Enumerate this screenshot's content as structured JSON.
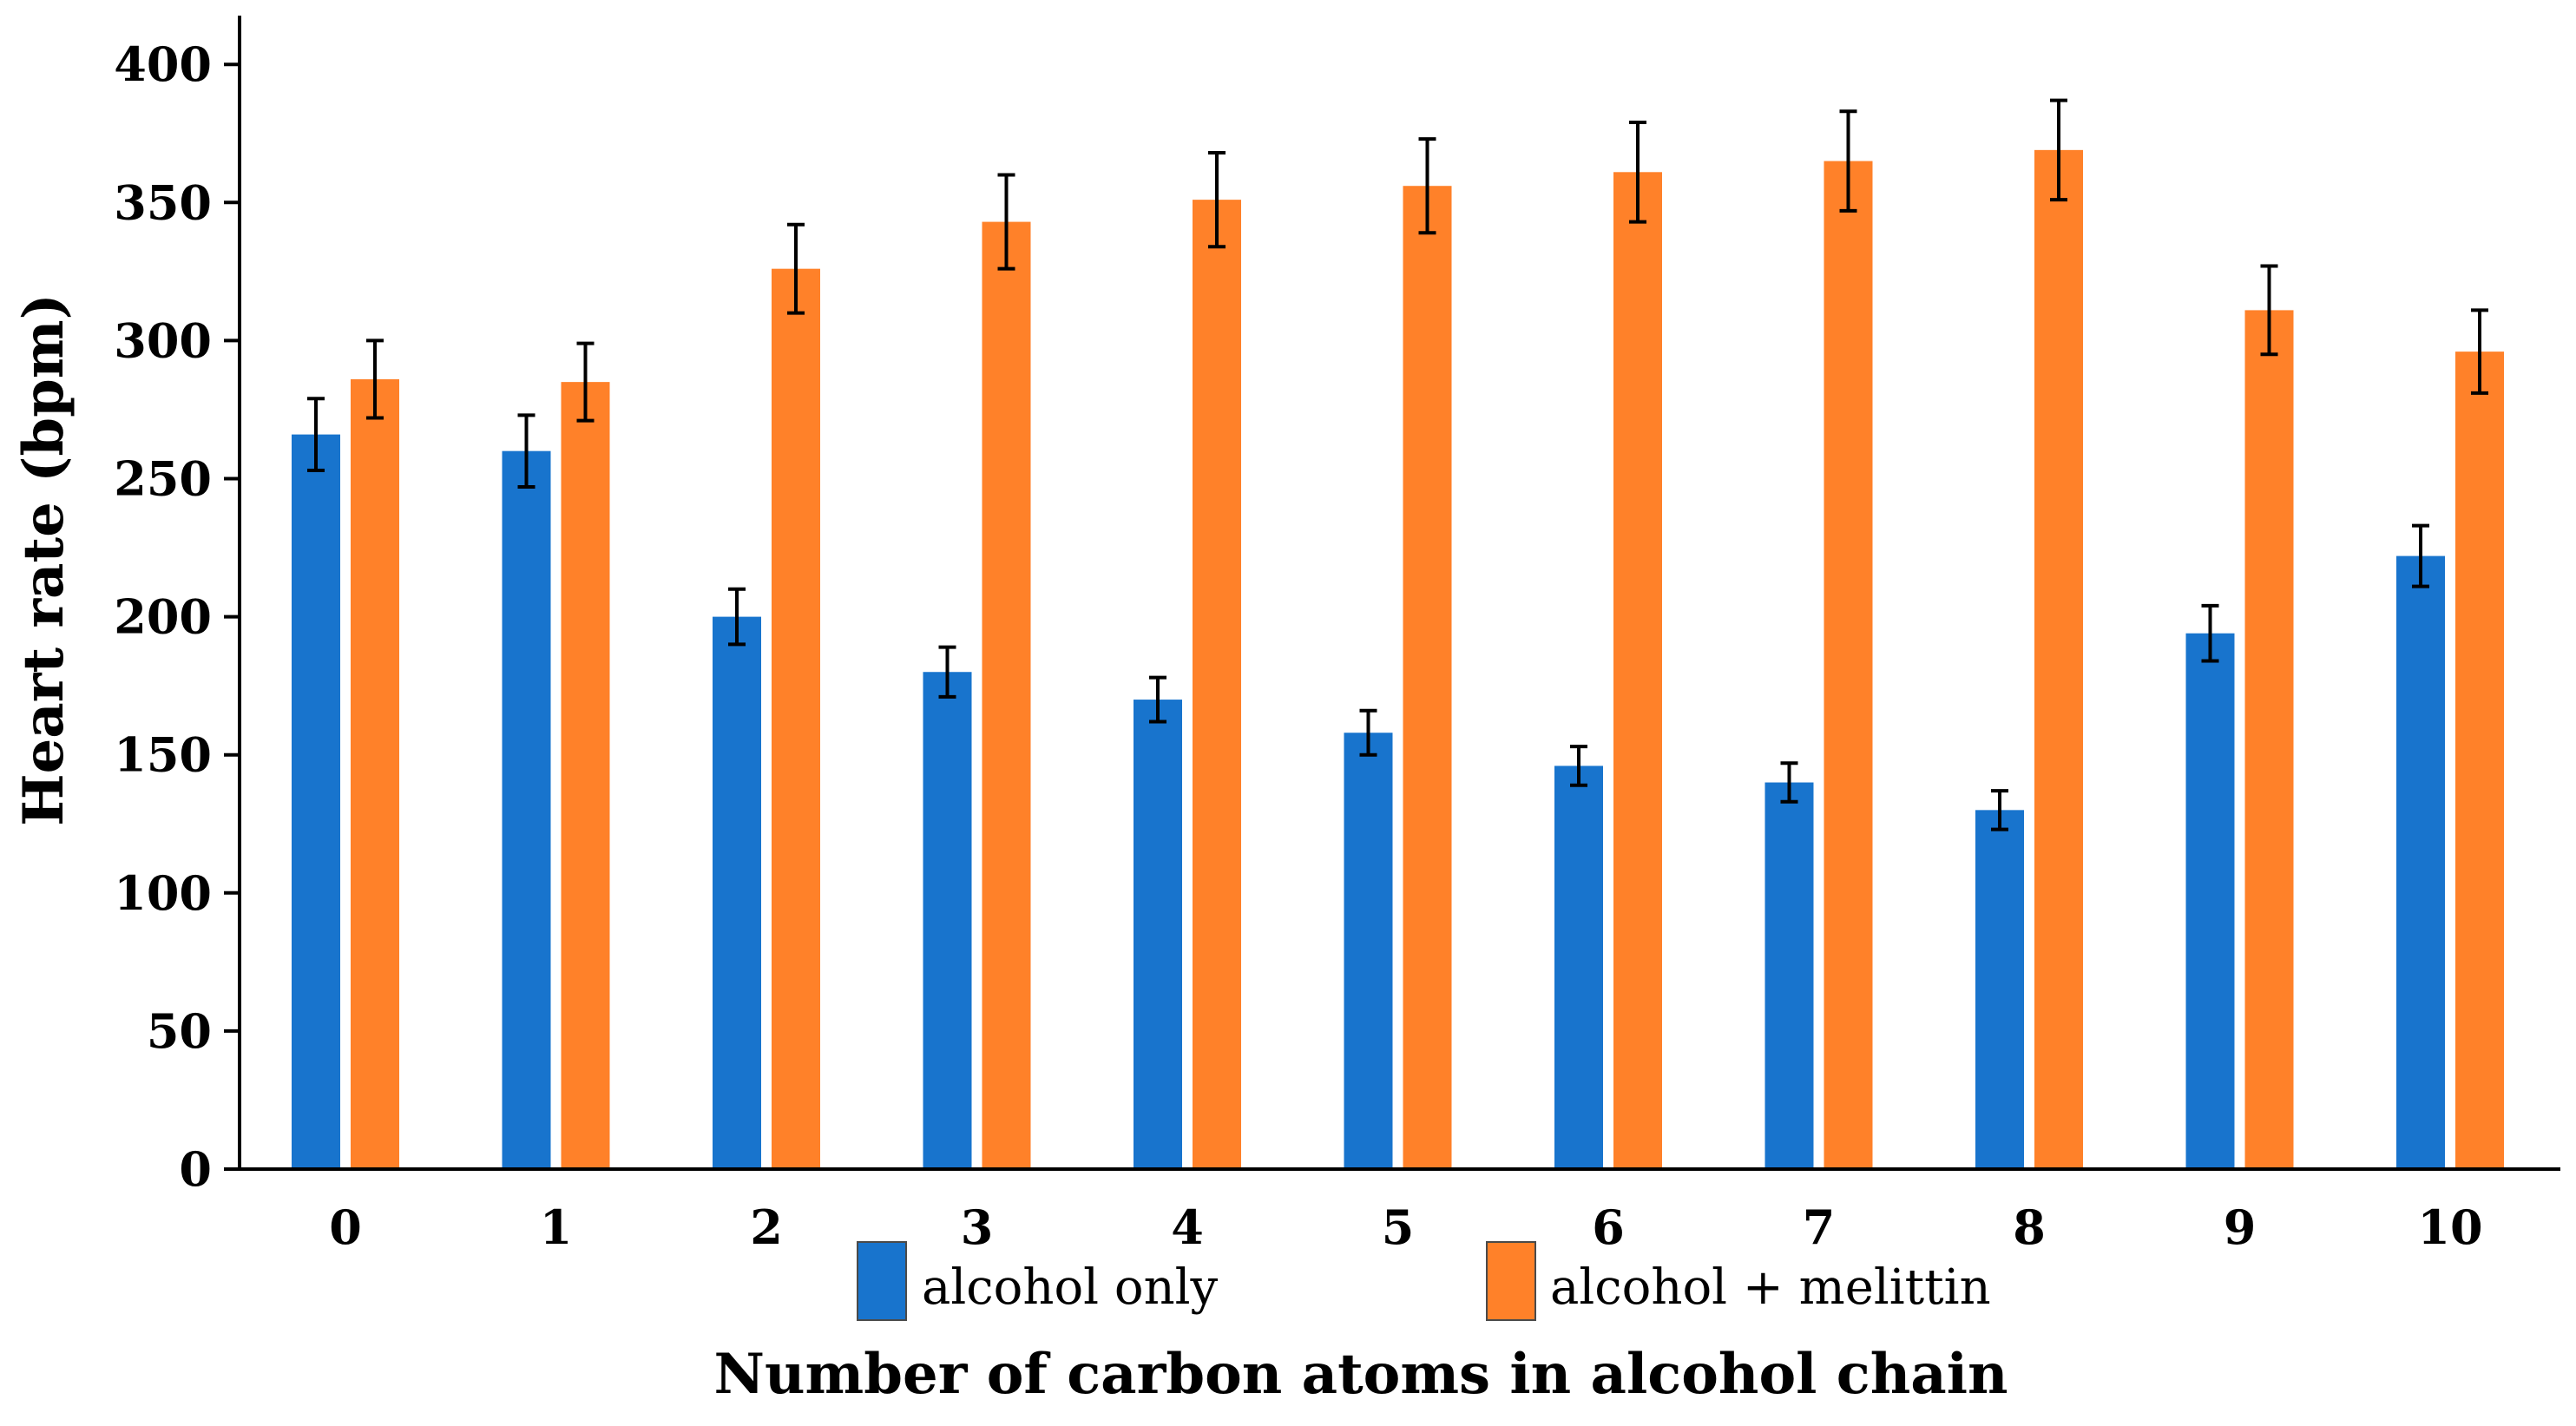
{
  "chart_data": {
    "type": "bar",
    "title": "",
    "xlabel": "Number of carbon atoms in alcohol chain",
    "ylabel": "Heart rate (bpm)",
    "categories": [
      "0",
      "1",
      "2",
      "3",
      "4",
      "5",
      "6",
      "7",
      "8",
      "9",
      "10"
    ],
    "ylim": [
      0,
      400
    ],
    "yticks": [
      0,
      50,
      100,
      150,
      200,
      250,
      300,
      350,
      400
    ],
    "grid": false,
    "legend_position": "bottom",
    "series": [
      {
        "name": "alcohol only",
        "color": "#1874CD",
        "values": [
          266,
          260,
          200,
          180,
          170,
          158,
          146,
          140,
          130,
          194,
          222
        ],
        "errors": [
          13,
          13,
          10,
          9,
          8,
          8,
          7,
          7,
          7,
          10,
          11
        ]
      },
      {
        "name": "alcohol + melittin",
        "color": "#FF8129",
        "values": [
          286,
          285,
          326,
          343,
          351,
          356,
          361,
          365,
          369,
          311,
          296
        ],
        "errors": [
          14,
          14,
          16,
          17,
          17,
          17,
          18,
          18,
          18,
          16,
          15
        ]
      }
    ]
  }
}
